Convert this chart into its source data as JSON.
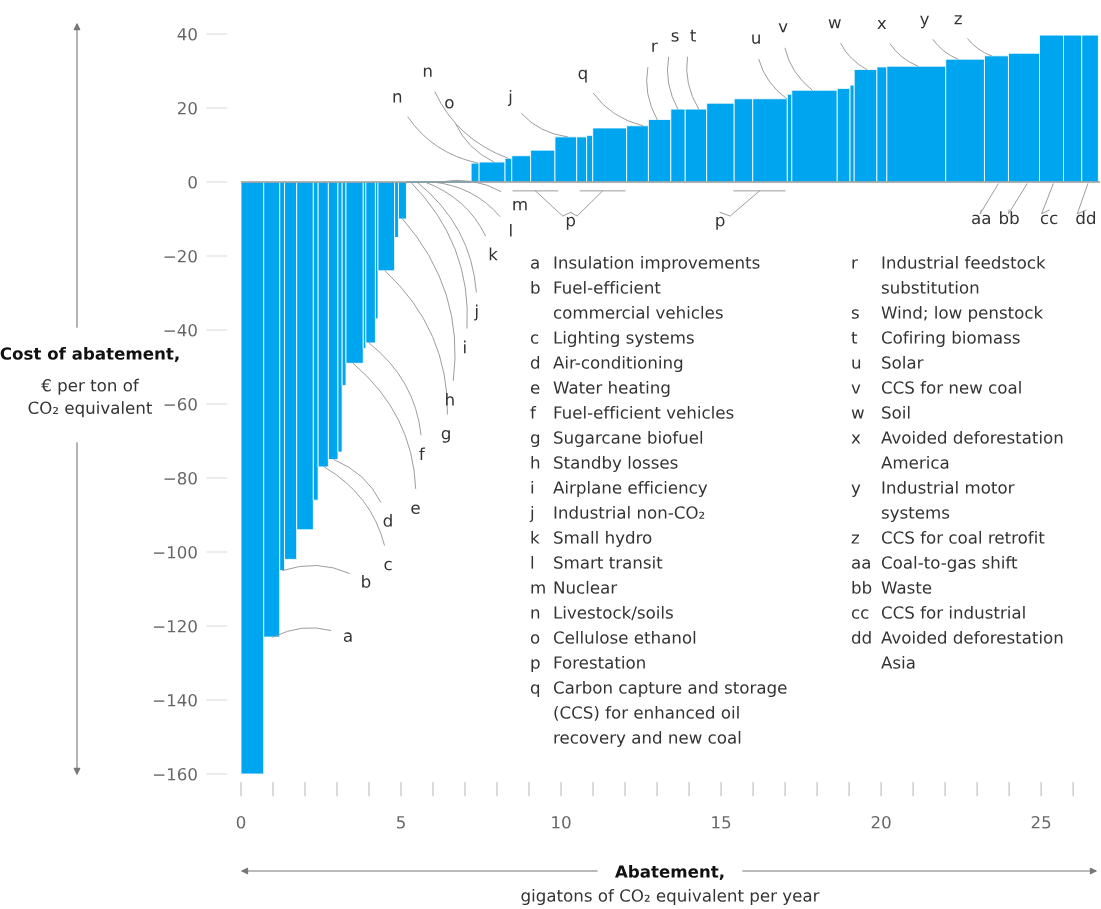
{
  "chart_data": {
    "type": "histogram",
    "color": "#00a5ef",
    "bins": [
      0,
      0.71,
      1.21,
      1.36,
      1.74,
      2.26,
      2.41,
      2.73,
      3.03,
      3.16,
      3.28,
      3.82,
      3.9,
      4.2,
      4.28,
      4.8,
      4.92,
      5.17,
      7.19,
      7.44,
      8.25,
      8.46,
      9.05,
      9.81,
      10.49,
      10.8,
      10.99,
      12.05,
      12.73,
      13.43,
      13.88,
      14.55,
      15.41,
      15.99,
      17.07,
      17.21,
      18.63,
      19.03,
      19.16,
      19.87,
      20.18,
      22.02,
      23.23,
      23.98,
      24.95,
      25.7,
      26.27,
      26.79
    ],
    "values": [
      -160,
      -123,
      -105,
      -102,
      -94,
      -86,
      -77,
      -75,
      -73,
      -55,
      -49,
      -45,
      -43.5,
      -37,
      -24,
      -15,
      -10,
      0,
      5.1,
      5.4,
      6.4,
      7.1,
      8.6,
      12.2,
      12.2,
      12.6,
      14.6,
      15.2,
      16.9,
      19.7,
      19.7,
      21.3,
      22.5,
      22.5,
      23.7,
      24.8,
      25.3,
      26.2,
      30.4,
      31.1,
      31.3,
      33.2,
      34.1,
      34.8,
      39.7,
      39.7,
      39.7
    ],
    "xlim": [
      0,
      26.84
    ],
    "xticks": [
      0,
      {
        "value": 1,
        "label": null
      },
      {
        "value": 2,
        "label": null
      },
      {
        "value": 3,
        "label": null
      },
      {
        "value": 4,
        "label": null
      },
      5,
      {
        "value": 6,
        "label": null
      },
      {
        "value": 7,
        "label": null
      },
      {
        "value": 8,
        "label": null
      },
      {
        "value": 9,
        "label": null
      },
      10,
      {
        "value": 11,
        "label": null
      },
      {
        "value": 12,
        "label": null
      },
      {
        "value": 13,
        "label": null
      },
      {
        "value": 14,
        "label": null
      },
      15,
      {
        "value": 16,
        "label": null
      },
      {
        "value": 17,
        "label": null
      },
      {
        "value": 18,
        "label": null
      },
      {
        "value": 19,
        "label": null
      },
      20,
      {
        "value": 21,
        "label": null
      },
      {
        "value": 22,
        "label": null
      },
      {
        "value": 23,
        "label": null
      },
      {
        "value": 24,
        "label": null
      },
      25,
      {
        "value": 26,
        "label": null
      }
    ],
    "ylim": [
      -160,
      40
    ],
    "yticks": [
      {
        "value": -160,
        "label": "−160"
      },
      {
        "value": -140,
        "label": "−140"
      },
      {
        "value": -120,
        "label": "−120"
      },
      {
        "value": -100,
        "label": "−100"
      },
      {
        "value": -80,
        "label": "−80"
      },
      {
        "value": -60,
        "label": "−60"
      },
      {
        "value": -40,
        "label": "−40"
      },
      {
        "value": -20,
        "label": "−20"
      },
      0,
      20,
      40
    ],
    "ylabel": "Cost of abatement,\n€ per ton of\nCO₂ equivalent",
    "xlabel": "Abatement,\ngigatons of CO₂ equivalent per year",
    "annotations": [
      {
        "text": "a",
        "x": 1.0,
        "y": -123
      },
      {
        "text": "b",
        "x": 1.3,
        "y": -105
      },
      {
        "text": "c",
        "x": 2.6,
        "y": -77
      },
      {
        "text": "d",
        "x": 2.9,
        "y": -75
      },
      {
        "text": "e",
        "x": 3.5,
        "y": -49
      },
      {
        "text": "f",
        "x": 4.0,
        "y": -43.5
      },
      {
        "text": "g",
        "x": 4.5,
        "y": -24
      },
      {
        "text": "h",
        "x": 5.05,
        "y": -10
      },
      {
        "text": "i",
        "x": 5.3,
        "y": 0
      },
      {
        "text": "j",
        "x": 5.5,
        "y": 0
      },
      {
        "text": "k",
        "x": 5.75,
        "y": 0
      },
      {
        "text": "l",
        "x": 6.0,
        "y": 0
      },
      {
        "text": "m",
        "x": 6.2,
        "y": 0
      },
      {
        "text": "n",
        "x": 7.4,
        "y": 5.1
      },
      {
        "text": "o",
        "x": 7.9,
        "y": 5.4
      },
      {
        "text": "n",
        "x": 8.35,
        "y": 6.4
      },
      {
        "text": "j",
        "x": 10.2,
        "y": 12.2
      },
      {
        "text": "q",
        "x": 12.55,
        "y": 15.2
      },
      {
        "text": "r",
        "x": 13.0,
        "y": 16.9
      },
      {
        "text": "s",
        "x": 13.65,
        "y": 19.7
      },
      {
        "text": "t",
        "x": 14.3,
        "y": 19.7
      },
      {
        "text": "u",
        "x": 17.05,
        "y": 22.5
      },
      {
        "text": "v",
        "x": 17.85,
        "y": 24.8
      },
      {
        "text": "w",
        "x": 19.55,
        "y": 30.4
      },
      {
        "text": "x",
        "x": 21.15,
        "y": 31.3
      },
      {
        "text": "y",
        "x": 22.4,
        "y": 33.2
      },
      {
        "text": "z",
        "x": 23.45,
        "y": 34.1
      },
      "p",
      "p",
      "aa",
      "bb",
      "cc",
      "dd",
      "a Insulation improvements",
      "b Fuel-efficient\ncommercial vehicles",
      "c Lighting systems",
      "d Air-conditioning",
      "e Water heating",
      "f Fuel-efficient vehicles",
      "g Sugarcane biofuel",
      "h Standby losses",
      "i Airplane efficiency",
      "j Industrial non-CO₂",
      "k Small hydro",
      "l Smart transit",
      "m Nuclear",
      "n Livestock/soils",
      "o Cellulose ethanol",
      "p Forestation",
      "q Carbon capture and storage\n(CCS) for enhanced oil\nrecovery and new coal",
      "r Industrial feedstock\nsubstitution",
      "s Wind; low penstock",
      "t Cofiring biomass",
      "u Solar",
      "v CCS for new coal",
      "w Soil",
      "x Avoided deforestation\nAmerica",
      "y Industrial motor\nsystems",
      "z CCS for coal retrofit",
      "aa Coal-to-gas shift",
      "bb Waste",
      "cc CCS for industrial",
      "dd Avoided deforestation\nAsia"
    ]
  }
}
